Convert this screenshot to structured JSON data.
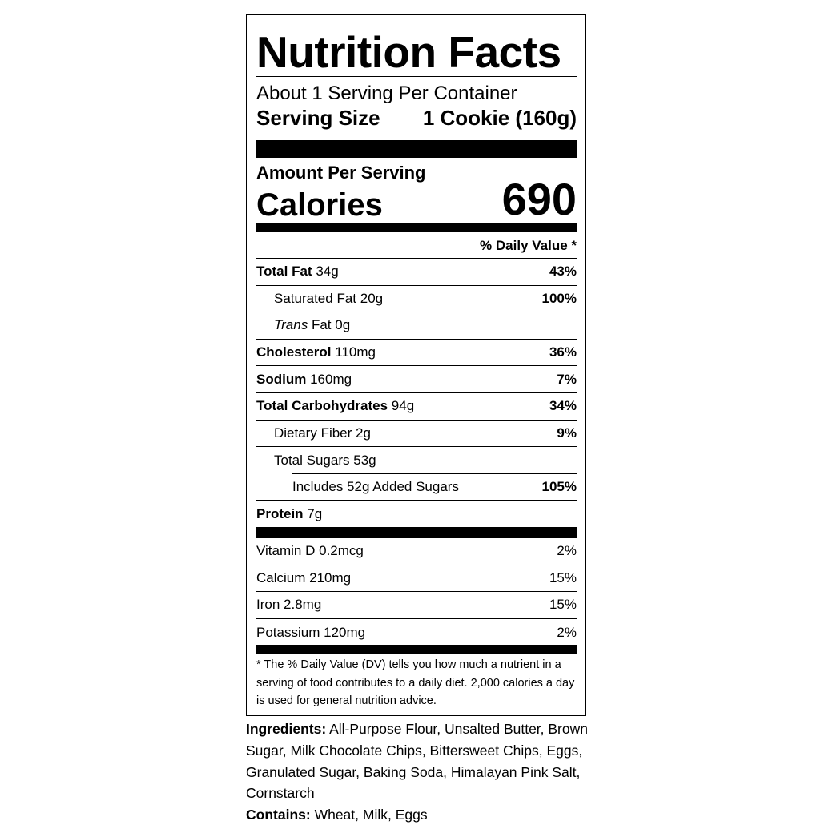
{
  "title": "Nutrition Facts",
  "servings_per_container": "About 1 Serving Per Container",
  "serving_size_label": "Serving Size",
  "serving_size_value": "1 Cookie (160g)",
  "amount_per_serving": "Amount Per Serving",
  "calories_label": "Calories",
  "calories_value": "690",
  "daily_value_header": "% Daily Value *",
  "nutrients": [
    {
      "name": "Total Fat",
      "amount": "34g",
      "dv": "43%"
    },
    {
      "name": "Saturated Fat",
      "amount": "20g",
      "dv": "100%"
    },
    {
      "name": "Trans",
      "name_suffix": "Fat",
      "amount": "0g",
      "dv": ""
    },
    {
      "name": "Cholesterol",
      "amount": "110mg",
      "dv": "36%"
    },
    {
      "name": "Sodium",
      "amount": "160mg",
      "dv": "7%"
    },
    {
      "name": "Total Carbohydrates",
      "amount": "94g",
      "dv": "34%"
    },
    {
      "name": "Dietary Fiber",
      "amount": "2g",
      "dv": "9%"
    },
    {
      "name": "Total Sugars",
      "amount": "53g",
      "dv": ""
    },
    {
      "name": "Includes 52g",
      "amount": "Added Sugars",
      "dv": "105%"
    },
    {
      "name": "Protein",
      "amount": "7g",
      "dv": ""
    }
  ],
  "vitamins": [
    {
      "name": "Vitamin D",
      "amount": "0.2mcg",
      "dv": "2%"
    },
    {
      "name": "Calcium",
      "amount": "210mg",
      "dv": "15%"
    },
    {
      "name": "Iron",
      "amount": "2.8mg",
      "dv": "15%"
    },
    {
      "name": "Potassium",
      "amount": "120mg",
      "dv": "2%"
    }
  ],
  "footnote": "* The % Daily Value (DV) tells you how much a nutrient in a serving of food contributes to a daily diet. 2,000 calories a day is used for general nutrition advice.",
  "ingredients_label": "Ingredients:",
  "ingredients": "All-Purpose Flour, Unsalted Butter, Brown Sugar, Milk Chocolate Chips, Bittersweet Chips, Eggs, Granulated Sugar, Baking Soda, Himalayan Pink Salt, Cornstarch",
  "contains_label": "Contains:",
  "contains": "Wheat, Milk, Eggs"
}
